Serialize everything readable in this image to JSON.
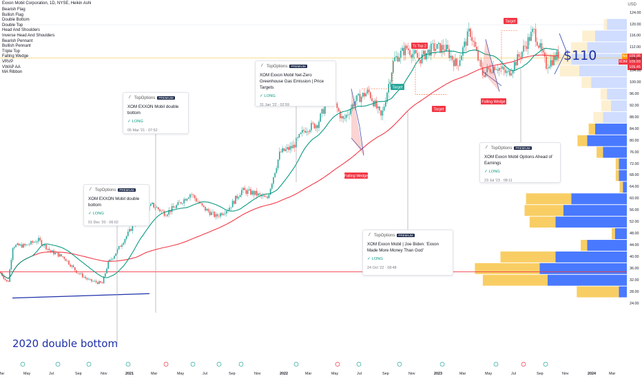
{
  "header": {
    "title": "Exxon Mobil Corporation, 1D, NYSE, Heikin Ashi",
    "currency": "USD",
    "indicators": [
      "Bearish Flag",
      "Bullish Flag",
      "Double Bottom",
      "Double Top",
      "Head And Shoulders",
      "Inverse Head And Shoulders",
      "Bearish Pennant",
      "Bullish Pennant",
      "Triple Top",
      "Falling Wedge",
      "VRVP",
      "VWAP AA",
      "MA Ribbon"
    ]
  },
  "annotations": {
    "price_target": "$110",
    "double_bottom_2020": "2020 double bottom"
  },
  "pattern_labels": {
    "falling_wedge_1": "Falling Wedge",
    "falling_wedge_2": "Falling Wedge",
    "target_1": "Target",
    "target_2": "Target",
    "target_3": "Target",
    "top": "Top 2"
  },
  "price_labels": {
    "current": "109.95",
    "xom_value": "109.93",
    "xom_ticker": "XOM",
    "other": "109.45",
    "ma": "No"
  },
  "ideas": [
    {
      "author": "TopOptions",
      "badge": "PREMIUM",
      "text": "XOM EXXON Mobil double bottom",
      "side": "LONG",
      "date": "01 Dec '20 · 06:02"
    },
    {
      "author": "TopOptions",
      "badge": "PREMIUM",
      "text": "XOM EXXON Mobil  double bottom",
      "side": "LONG",
      "date": "05 Mar '21 · 07:52"
    },
    {
      "author": "TopOptions",
      "badge": "PREMIUM",
      "text": "XOM Exxon Mobil Net-Zero Greenhouse Gas Emission | Price Targets",
      "side": "LONG",
      "date": "31 Jan '22 · 02:59"
    },
    {
      "author": "TopOptions",
      "badge": "PREMIUM",
      "text": "XOM Exxon Mobil | Joe Biden: 'Exxon Made More Money Than God'",
      "side": "LONG",
      "date": "24 Oct '22 · 08:48"
    },
    {
      "author": "TopOptions",
      "badge": "PREMIUM",
      "text": "XOM Exxon Mobil Options Ahead of Earnings",
      "side": "LONG",
      "date": "23 Jul '23 · 08:11"
    }
  ],
  "colors": {
    "up": "#26a69a",
    "down": "#ef5350",
    "ma_fast": "#089981",
    "ma_slow": "#f23645",
    "vp_up": "#2962ff",
    "vp_down": "#f7c549",
    "hline": "#f23645",
    "annot": "#1c2fa8"
  },
  "chart_data": {
    "type": "candlestick",
    "yticks": [
      "124.00",
      "120.00",
      "116.00",
      "112.00",
      "108.00",
      "104.00",
      "100.00",
      "96.00",
      "92.00",
      "88.00",
      "84.00",
      "80.00",
      "76.00",
      "72.00",
      "68.00",
      "64.00",
      "60.00",
      "56.00",
      "52.00",
      "48.00",
      "44.00",
      "40.00",
      "36.00",
      "32.00",
      "28.00",
      "24.00"
    ],
    "xticks": [
      "Mar",
      "May",
      "Jul",
      "Sep",
      "Nov",
      "2021",
      "Mar",
      "May",
      "Jul",
      "Sep",
      "Nov",
      "2022",
      "Mar",
      "May",
      "Jul",
      "Sep",
      "Nov",
      "2023",
      "Mar",
      "May",
      "Jul",
      "Sep",
      "Nov",
      "2024",
      "Mar"
    ],
    "ylim": [
      24,
      124
    ],
    "close_path": [
      [
        "2020-03",
        35
      ],
      [
        "2020-03-20",
        31
      ],
      [
        "2020-04",
        44
      ],
      [
        "2020-05",
        44
      ],
      [
        "2020-06",
        46
      ],
      [
        "2020-07",
        42
      ],
      [
        "2020-08",
        40
      ],
      [
        "2020-09",
        35
      ],
      [
        "2020-10",
        32
      ],
      [
        "2020-11-01",
        31
      ],
      [
        "2020-11-15",
        38
      ],
      [
        "2020-12",
        41
      ],
      [
        "2021-01",
        48
      ],
      [
        "2021-02",
        55
      ],
      [
        "2021-03",
        58
      ],
      [
        "2021-04",
        55
      ],
      [
        "2021-05",
        58
      ],
      [
        "2021-06",
        62
      ],
      [
        "2021-07",
        57
      ],
      [
        "2021-08",
        54
      ],
      [
        "2021-09",
        57
      ],
      [
        "2021-10",
        63
      ],
      [
        "2021-11",
        62
      ],
      [
        "2021-12",
        60
      ],
      [
        "2022-01",
        76
      ],
      [
        "2022-02",
        78
      ],
      [
        "2022-03",
        84
      ],
      [
        "2022-04",
        86
      ],
      [
        "2022-05",
        96
      ],
      [
        "2022-06",
        87
      ],
      [
        "2022-07",
        94
      ],
      [
        "2022-08",
        97
      ],
      [
        "2022-09",
        88
      ],
      [
        "2022-10",
        108
      ],
      [
        "2022-11",
        112
      ],
      [
        "2022-12",
        108
      ],
      [
        "2023-01",
        112
      ],
      [
        "2023-02",
        112
      ],
      [
        "2023-03",
        106
      ],
      [
        "2023-04",
        118
      ],
      [
        "2023-05",
        103
      ],
      [
        "2023-06",
        106
      ],
      [
        "2023-07",
        103
      ],
      [
        "2023-08",
        110
      ],
      [
        "2023-09",
        118
      ],
      [
        "2023-10",
        106
      ],
      [
        "2023-11",
        110
      ]
    ],
    "horizontal_line": 35,
    "volume_profile_levels": [
      120,
      116,
      112,
      108,
      104,
      100,
      96,
      92,
      88,
      84,
      80,
      76,
      72,
      68,
      64,
      60,
      56,
      52,
      48,
      44,
      40,
      36,
      32,
      28
    ],
    "volume_profile_up": [
      5,
      8,
      10,
      14,
      12,
      9,
      5,
      4,
      6,
      8,
      10,
      6,
      2,
      2,
      1,
      14,
      16,
      18,
      3,
      10,
      18,
      22,
      20,
      2
    ],
    "volume_profile_down": [
      1,
      4,
      5,
      8,
      6,
      3,
      2,
      3,
      3,
      2,
      3,
      2,
      1,
      1,
      1,
      14,
      12,
      8,
      1,
      2,
      17,
      20,
      20,
      13
    ]
  }
}
